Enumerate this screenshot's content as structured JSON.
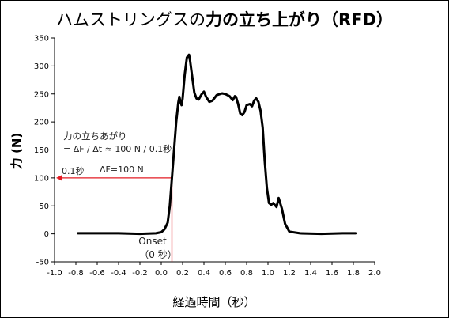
{
  "title": {
    "plain": "ハムストリングスの",
    "bold": "力の立ち上がり（RFD）"
  },
  "chart_data": {
    "type": "line",
    "ylabel": "力 (N)",
    "xlabel": "経過時間（秒）",
    "xlim": [
      -1.0,
      2.0
    ],
    "ylim": [
      -50,
      350
    ],
    "x_ticks": [
      -1.0,
      -0.8,
      -0.6,
      -0.4,
      -0.2,
      0.0,
      0.2,
      0.4,
      0.6,
      0.8,
      1.0,
      1.2,
      1.4,
      1.6,
      1.8,
      2.0
    ],
    "y_ticks": [
      -50,
      0,
      50,
      100,
      150,
      200,
      250,
      300,
      350
    ],
    "x_tick_labels": [
      "-1.0",
      "-0.8",
      "-0.6",
      "-0.4",
      "-0.2",
      "0.0",
      "0.2",
      "0.4",
      "0.6",
      "0.8",
      "1.0",
      "1.2",
      "1.4",
      "1.6",
      "1.8",
      "2.0"
    ],
    "y_tick_labels": [
      "-50",
      "0",
      "50",
      "100",
      "150",
      "200",
      "250",
      "300",
      "350"
    ],
    "grid": false,
    "legend": "none",
    "series": [
      {
        "color": "#000000",
        "points": [
          [
            -0.78,
            1
          ],
          [
            -0.6,
            1
          ],
          [
            -0.4,
            1
          ],
          [
            -0.2,
            0
          ],
          [
            -0.05,
            1
          ],
          [
            0.0,
            3
          ],
          [
            0.03,
            8
          ],
          [
            0.06,
            20
          ],
          [
            0.08,
            50
          ],
          [
            0.1,
            100
          ],
          [
            0.12,
            150
          ],
          [
            0.14,
            200
          ],
          [
            0.16,
            235
          ],
          [
            0.17,
            245
          ],
          [
            0.18,
            235
          ],
          [
            0.19,
            230
          ],
          [
            0.2,
            242
          ],
          [
            0.22,
            285
          ],
          [
            0.24,
            315
          ],
          [
            0.26,
            320
          ],
          [
            0.27,
            310
          ],
          [
            0.29,
            280
          ],
          [
            0.31,
            252
          ],
          [
            0.33,
            242
          ],
          [
            0.35,
            240
          ],
          [
            0.38,
            250
          ],
          [
            0.4,
            254
          ],
          [
            0.42,
            245
          ],
          [
            0.45,
            236
          ],
          [
            0.48,
            238
          ],
          [
            0.52,
            248
          ],
          [
            0.57,
            251
          ],
          [
            0.6,
            250
          ],
          [
            0.64,
            246
          ],
          [
            0.67,
            239
          ],
          [
            0.69,
            246
          ],
          [
            0.7,
            245
          ],
          [
            0.72,
            232
          ],
          [
            0.74,
            215
          ],
          [
            0.76,
            212
          ],
          [
            0.78,
            218
          ],
          [
            0.8,
            230
          ],
          [
            0.83,
            232
          ],
          [
            0.85,
            228
          ],
          [
            0.87,
            238
          ],
          [
            0.89,
            242
          ],
          [
            0.91,
            236
          ],
          [
            0.93,
            220
          ],
          [
            0.95,
            190
          ],
          [
            0.97,
            130
          ],
          [
            0.99,
            82
          ],
          [
            1.01,
            55
          ],
          [
            1.03,
            52
          ],
          [
            1.05,
            55
          ],
          [
            1.08,
            48
          ],
          [
            1.1,
            64
          ],
          [
            1.13,
            45
          ],
          [
            1.16,
            18
          ],
          [
            1.2,
            4
          ],
          [
            1.3,
            1
          ],
          [
            1.5,
            0
          ],
          [
            1.7,
            1
          ],
          [
            1.82,
            1
          ]
        ]
      }
    ],
    "annotations": {
      "rfd_line1": "力の立ちあがり",
      "rfd_line2": "= ΔF / Δt ≈ 100 N / 0.1秒",
      "time_label": "0.1秒",
      "force_label": "ΔF=100 N",
      "onset_label": "Onset",
      "onset_sub": "（0 秒）",
      "arrow_color": "#e31b23",
      "guide_x": 0.1,
      "guide_y": 100
    }
  }
}
